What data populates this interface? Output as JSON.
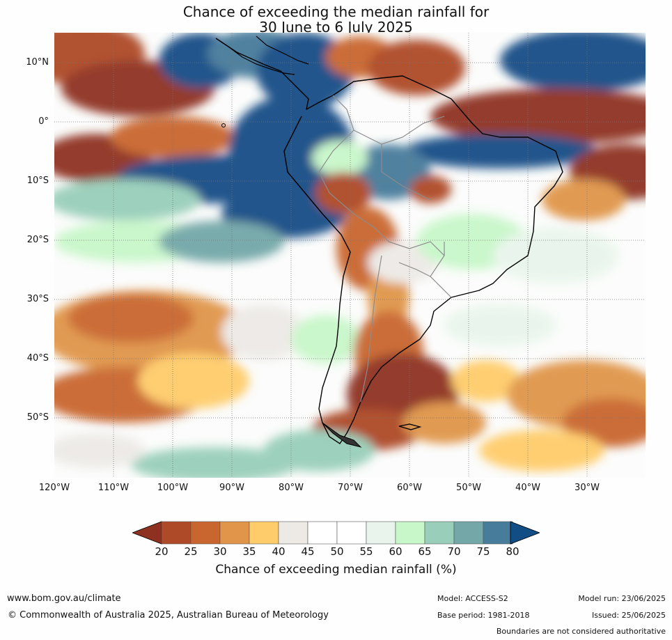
{
  "title": {
    "line1": "Chance of exceeding the median rainfall for",
    "line2": "30 June to 6 July 2025"
  },
  "map": {
    "lat_labels": [
      "10°N",
      "0°",
      "10°S",
      "20°S",
      "30°S",
      "40°S",
      "50°S"
    ],
    "lon_labels": [
      "120°W",
      "110°W",
      "100°W",
      "90°W",
      "80°W",
      "70°W",
      "60°W",
      "50°W",
      "40°W",
      "30°W"
    ],
    "colors": {
      "ocean_base": "#ffffff",
      "land_outline": "#000000",
      "border": "#8c8c8c",
      "grid": "#777777"
    }
  },
  "colorbar": {
    "ticks": [
      "20",
      "25",
      "30",
      "35",
      "40",
      "45",
      "50",
      "55",
      "60",
      "65",
      "70",
      "75",
      "80"
    ],
    "colors": [
      "#8f3120",
      "#ae4a28",
      "#c9662f",
      "#e0954a",
      "#ffcc6b",
      "#edeae6",
      "#ffffff",
      "#ffffff",
      "#e9f5ec",
      "#c8f7c9",
      "#99cfba",
      "#73a7a8",
      "#477c9b",
      "#124d86"
    ],
    "label": "Chance of exceeding median rainfall (%)"
  },
  "footer": {
    "website": "www.bom.gov.au/climate",
    "copyright": "© Commonwealth of Australia 2025, Australian Bureau of Meteorology",
    "model": "Model: ACCESS-S2",
    "base_period": "Base period: 1981-2018",
    "model_run": "Model run: 23/06/2025",
    "issued": "Issued: 25/06/2025",
    "disclaimer": "Boundaries are not considered authoritative"
  }
}
